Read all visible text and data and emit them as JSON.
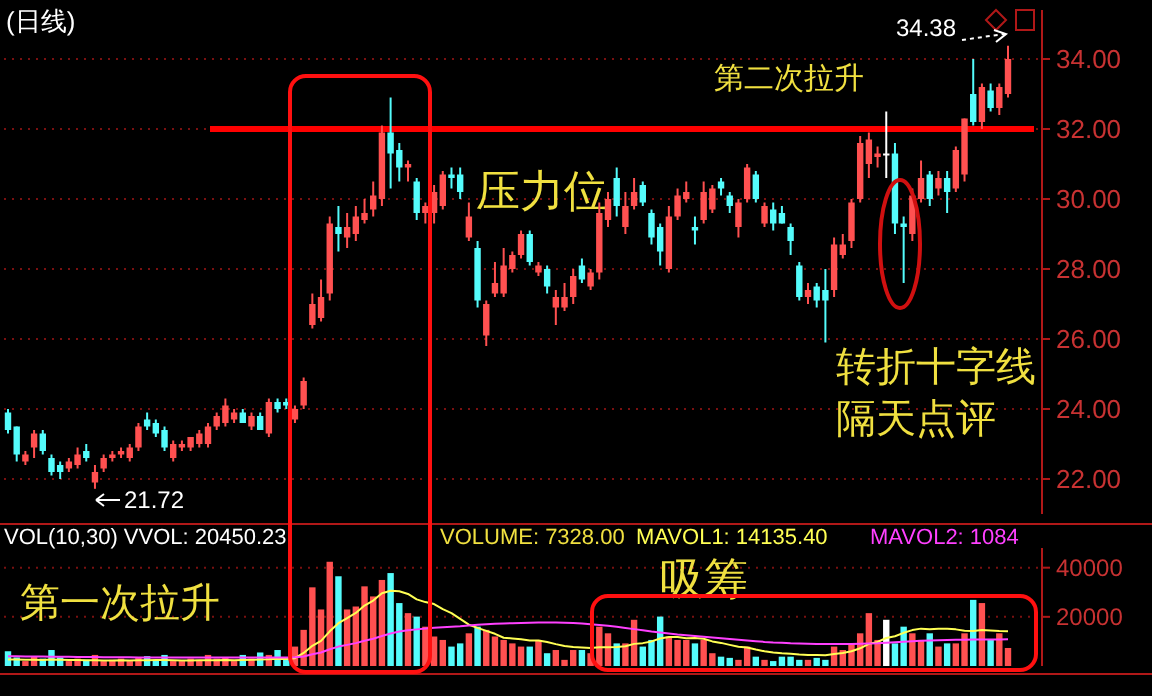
{
  "chart_data": [
    {
      "type": "candlestick",
      "title": "(日线)",
      "categories": [
        null,
        null,
        null,
        null,
        null,
        null,
        null,
        null,
        null,
        null,
        null,
        null,
        null,
        null,
        null,
        null,
        null,
        null,
        null,
        null,
        null,
        null,
        null,
        null,
        null,
        null,
        null,
        null,
        null,
        null,
        null,
        null,
        null,
        null,
        null,
        null,
        null,
        null,
        null,
        null,
        null,
        null,
        null,
        null,
        null,
        null,
        null,
        null,
        null,
        null,
        null,
        null,
        null,
        null,
        null,
        null,
        null,
        null,
        null,
        null,
        null,
        null,
        null,
        null,
        null,
        null,
        null,
        null,
        null,
        null,
        null,
        null,
        null,
        null,
        null,
        null,
        null,
        null,
        null,
        null,
        null,
        null,
        null,
        null,
        null,
        null,
        null,
        null,
        null,
        null,
        null,
        null,
        null,
        null,
        null,
        null,
        null,
        null,
        null,
        null,
        null,
        null,
        null,
        null,
        null,
        null,
        null,
        null,
        null,
        null,
        null,
        null,
        null,
        null,
        null,
        null
      ],
      "ohlc": [
        [
          23.9,
          24.0,
          23.3,
          23.4
        ],
        [
          23.5,
          23.5,
          22.5,
          22.7
        ],
        [
          22.5,
          22.8,
          22.4,
          22.7
        ],
        [
          22.9,
          23.4,
          22.6,
          23.3
        ],
        [
          23.3,
          23.4,
          22.7,
          22.8
        ],
        [
          22.6,
          22.7,
          22.1,
          22.2
        ],
        [
          22.4,
          22.5,
          22.0,
          22.2
        ],
        [
          22.3,
          22.6,
          22.2,
          22.5
        ],
        [
          22.4,
          22.9,
          22.3,
          22.7
        ],
        [
          22.8,
          23.0,
          22.5,
          22.6
        ],
        [
          21.9,
          22.4,
          21.72,
          22.2
        ],
        [
          22.3,
          22.7,
          22.2,
          22.6
        ],
        [
          22.6,
          22.8,
          22.5,
          22.7
        ],
        [
          22.7,
          22.9,
          22.6,
          22.8
        ],
        [
          22.6,
          23.0,
          22.5,
          22.9
        ],
        [
          22.9,
          23.6,
          22.8,
          23.5
        ],
        [
          23.7,
          23.9,
          23.4,
          23.5
        ],
        [
          23.6,
          23.7,
          23.2,
          23.3
        ],
        [
          23.4,
          23.5,
          22.8,
          22.9
        ],
        [
          22.6,
          23.1,
          22.5,
          23.0
        ],
        [
          22.9,
          23.1,
          22.8,
          23.0
        ],
        [
          22.9,
          23.2,
          22.8,
          23.2
        ],
        [
          23.0,
          23.4,
          22.9,
          23.3
        ],
        [
          23.0,
          23.6,
          22.9,
          23.5
        ],
        [
          23.5,
          23.9,
          23.4,
          23.8
        ],
        [
          23.6,
          24.3,
          23.5,
          24.1
        ],
        [
          23.7,
          24.0,
          23.6,
          23.9
        ],
        [
          23.9,
          24.0,
          23.6,
          23.6
        ],
        [
          23.5,
          23.9,
          23.4,
          23.8
        ],
        [
          23.8,
          23.9,
          23.4,
          23.4
        ],
        [
          23.3,
          24.3,
          23.2,
          24.2
        ],
        [
          24.2,
          24.3,
          23.9,
          24.0
        ],
        [
          24.2,
          24.3,
          24.0,
          24.1
        ],
        [
          23.7,
          24.1,
          23.6,
          24.0
        ],
        [
          24.1,
          24.9,
          24.0,
          24.8
        ],
        [
          26.4,
          27.3,
          26.3,
          27.0
        ],
        [
          26.6,
          27.7,
          26.5,
          27.2
        ],
        [
          27.3,
          29.5,
          27.1,
          29.3
        ],
        [
          29.2,
          29.8,
          28.5,
          29.0
        ],
        [
          28.9,
          29.6,
          28.6,
          29.2
        ],
        [
          29.0,
          29.8,
          28.8,
          29.5
        ],
        [
          29.4,
          30.0,
          29.3,
          29.6
        ],
        [
          29.7,
          30.5,
          29.5,
          30.1
        ],
        [
          30.0,
          32.1,
          29.8,
          31.9
        ],
        [
          31.9,
          32.9,
          30.3,
          31.3
        ],
        [
          31.4,
          31.6,
          30.5,
          30.9
        ],
        [
          30.9,
          31.1,
          30.5,
          31.0
        ],
        [
          30.5,
          30.6,
          29.4,
          29.6
        ],
        [
          29.6,
          29.9,
          29.3,
          29.8
        ],
        [
          29.6,
          30.4,
          29.3,
          30.2
        ],
        [
          29.8,
          30.8,
          29.7,
          30.7
        ],
        [
          30.7,
          30.9,
          30.3,
          30.6
        ],
        [
          30.7,
          30.9,
          30.0,
          30.2
        ],
        [
          28.9,
          29.9,
          28.8,
          29.5
        ],
        [
          28.6,
          28.8,
          26.9,
          27.1
        ],
        [
          26.1,
          27.1,
          25.8,
          27.0
        ],
        [
          27.3,
          28.2,
          27.2,
          27.6
        ],
        [
          27.3,
          28.6,
          27.2,
          28.1
        ],
        [
          28.0,
          28.5,
          27.9,
          28.4
        ],
        [
          28.4,
          29.1,
          28.3,
          29.0
        ],
        [
          29.0,
          29.1,
          28.1,
          28.2
        ],
        [
          27.9,
          28.2,
          27.8,
          28.1
        ],
        [
          28.0,
          28.1,
          27.3,
          27.5
        ],
        [
          26.9,
          27.4,
          26.4,
          27.2
        ],
        [
          26.9,
          27.6,
          26.8,
          27.2
        ],
        [
          27.2,
          28.0,
          27.0,
          27.8
        ],
        [
          28.1,
          28.3,
          27.6,
          27.7
        ],
        [
          27.5,
          28.0,
          27.4,
          27.9
        ],
        [
          27.9,
          29.9,
          27.7,
          29.6
        ],
        [
          29.4,
          30.2,
          29.2,
          30.0
        ],
        [
          30.6,
          30.9,
          29.5,
          29.8
        ],
        [
          29.2,
          30.2,
          29.0,
          29.8
        ],
        [
          29.8,
          30.6,
          29.7,
          30.2
        ],
        [
          30.4,
          30.5,
          29.8,
          29.9
        ],
        [
          29.6,
          29.7,
          28.7,
          28.9
        ],
        [
          29.2,
          29.3,
          28.1,
          28.5
        ],
        [
          28.0,
          29.8,
          27.9,
          29.5
        ],
        [
          29.5,
          30.3,
          29.4,
          30.1
        ],
        [
          30.0,
          30.5,
          29.9,
          30.2
        ],
        [
          29.2,
          29.5,
          28.7,
          29.1
        ],
        [
          29.4,
          30.5,
          29.3,
          30.2
        ],
        [
          29.7,
          30.4,
          29.6,
          30.3
        ],
        [
          30.5,
          30.6,
          30.1,
          30.3
        ],
        [
          30.1,
          30.2,
          29.6,
          29.8
        ],
        [
          29.2,
          30.0,
          28.9,
          29.9
        ],
        [
          30.0,
          31.0,
          29.9,
          30.9
        ],
        [
          30.7,
          30.8,
          29.9,
          30.0
        ],
        [
          29.3,
          29.9,
          29.2,
          29.8
        ],
        [
          29.7,
          29.9,
          29.1,
          29.3
        ],
        [
          29.6,
          29.8,
          29.3,
          29.3
        ],
        [
          29.2,
          29.3,
          28.4,
          28.8
        ],
        [
          28.1,
          28.2,
          27.1,
          27.2
        ],
        [
          27.2,
          27.6,
          27.0,
          27.4
        ],
        [
          27.5,
          27.6,
          26.9,
          27.1
        ],
        [
          27.4,
          28.0,
          25.9,
          27.1
        ],
        [
          27.4,
          28.9,
          27.2,
          28.7
        ],
        [
          28.4,
          29.0,
          28.3,
          28.7
        ],
        [
          28.8,
          30.0,
          28.6,
          29.9
        ],
        [
          30.0,
          31.8,
          29.9,
          31.6
        ],
        [
          31.0,
          31.9,
          30.6,
          31.7
        ],
        [
          31.2,
          31.5,
          30.9,
          31.3
        ],
        [
          31.3,
          32.5,
          30.6,
          31.3
        ],
        [
          31.3,
          31.6,
          29.0,
          29.3
        ],
        [
          29.3,
          29.5,
          27.6,
          29.2
        ],
        [
          29.0,
          30.3,
          28.8,
          30.1
        ],
        [
          30.0,
          31.1,
          29.9,
          30.6
        ],
        [
          30.7,
          30.8,
          29.8,
          30.0
        ],
        [
          30.3,
          30.8,
          30.1,
          30.6
        ],
        [
          30.6,
          30.8,
          29.6,
          30.2
        ],
        [
          30.3,
          31.5,
          30.2,
          31.4
        ],
        [
          30.7,
          32.3,
          30.5,
          32.3
        ],
        [
          33.0,
          34.0,
          32.1,
          32.2
        ],
        [
          32.2,
          33.3,
          32.0,
          33.2
        ],
        [
          33.1,
          33.3,
          32.5,
          32.6
        ],
        [
          32.6,
          33.3,
          32.4,
          33.2
        ],
        [
          33.0,
          34.38,
          32.9,
          34.0
        ]
      ],
      "colors": [
        "#54fcfc",
        "#54fcfc",
        "#ff5050",
        "#ff5050",
        "#54fcfc",
        "#54fcfc",
        "#54fcfc",
        "#ff5050",
        "#ff5050",
        "#54fcfc",
        "#ff5050",
        "#ff5050",
        "#ff5050",
        "#ff5050",
        "#ff5050",
        "#ff5050",
        "#54fcfc",
        "#54fcfc",
        "#54fcfc",
        "#ff5050",
        "#ff5050",
        "#ff5050",
        "#ff5050",
        "#ff5050",
        "#ff5050",
        "#ff5050",
        "#ff5050",
        "#54fcfc",
        "#ff5050",
        "#54fcfc",
        "#ff5050",
        "#54fcfc",
        "#54fcfc",
        "#ff5050",
        "#ff5050",
        "#ff5050",
        "#ff5050",
        "#ff5050",
        "#54fcfc",
        "#ff5050",
        "#ff5050",
        "#ff5050",
        "#ff5050",
        "#ff5050",
        "#54fcfc",
        "#54fcfc",
        "#ff5050",
        "#54fcfc",
        "#ff5050",
        "#ff5050",
        "#ff5050",
        "#54fcfc",
        "#54fcfc",
        "#ff5050",
        "#54fcfc",
        "#ff5050",
        "#ff5050",
        "#ff5050",
        "#ff5050",
        "#ff5050",
        "#54fcfc",
        "#ff5050",
        "#54fcfc",
        "#ff5050",
        "#ff5050",
        "#ff5050",
        "#54fcfc",
        "#ff5050",
        "#ff5050",
        "#ff5050",
        "#54fcfc",
        "#ff5050",
        "#ff5050",
        "#54fcfc",
        "#54fcfc",
        "#54fcfc",
        "#ff5050",
        "#ff5050",
        "#ff5050",
        "#54fcfc",
        "#ff5050",
        "#ff5050",
        "#54fcfc",
        "#54fcfc",
        "#ff5050",
        "#ff5050",
        "#54fcfc",
        "#ff5050",
        "#54fcfc",
        "#54fcfc",
        "#54fcfc",
        "#54fcfc",
        "#ff5050",
        "#54fcfc",
        "#54fcfc",
        "#ff5050",
        "#ff5050",
        "#ff5050",
        "#ff5050",
        "#ff5050",
        "#ff5050",
        "#ffffff",
        "#54fcfc",
        "#54fcfc",
        "#ff5050",
        "#ff5050",
        "#54fcfc",
        "#ff5050",
        "#54fcfc",
        "#ff5050",
        "#ff5050",
        "#54fcfc",
        "#ff5050",
        "#54fcfc",
        "#ff5050",
        "#ff5050"
      ],
      "ylim": [
        21.0,
        35.4
      ],
      "yticks": [
        {
          "value": 22,
          "label": "22.00"
        },
        {
          "value": 24,
          "label": "24.00"
        },
        {
          "value": 26,
          "label": "26.00"
        },
        {
          "value": 28,
          "label": "28.00"
        },
        {
          "value": 30,
          "label": "30.00"
        },
        {
          "value": 32,
          "label": "32.00"
        },
        {
          "value": 34,
          "label": "34.00"
        }
      ],
      "grid": "y",
      "tick_labels": "y",
      "ref_lines": [
        {
          "axis": "y",
          "value": 32,
          "label": "压力位",
          "color": "#ff0000"
        }
      ],
      "annotations": [
        "第二次拉升",
        "34.38",
        "21.72",
        "转折十字线",
        "隔天点评"
      ]
    },
    {
      "type": "bar",
      "title": "VOL(10,30) VVOL: 20450.23",
      "categories": [
        null,
        null,
        null,
        null,
        null,
        null,
        null,
        null,
        null,
        null,
        null,
        null,
        null,
        null,
        null,
        null,
        null,
        null,
        null,
        null,
        null,
        null,
        null,
        null,
        null,
        null,
        null,
        null,
        null,
        null,
        null,
        null,
        null,
        null,
        null,
        null,
        null,
        null,
        null,
        null,
        null,
        null,
        null,
        null,
        null,
        null,
        null,
        null,
        null,
        null,
        null,
        null,
        null,
        null,
        null,
        null,
        null,
        null,
        null,
        null,
        null,
        null,
        null,
        null,
        null,
        null,
        null,
        null,
        null,
        null,
        null,
        null,
        null,
        null,
        null,
        null,
        null,
        null,
        null,
        null,
        null,
        null,
        null,
        null,
        null,
        null,
        null,
        null,
        null,
        null,
        null,
        null,
        null,
        null,
        null,
        null,
        null,
        null,
        null,
        null,
        null,
        null,
        null,
        null,
        null,
        null,
        null,
        null,
        null,
        null,
        null,
        null,
        null,
        null,
        null,
        null
      ],
      "series": [
        {
          "type": "bar",
          "values": [
            6000,
            3500,
            2000,
            4000,
            3000,
            6500,
            3500,
            2000,
            3000,
            2500,
            4500,
            2000,
            2500,
            3000,
            2000,
            3500,
            4000,
            2500,
            4500,
            2000,
            2000,
            3000,
            2500,
            4500,
            3000,
            3500,
            2000,
            4500,
            3000,
            5500,
            4500,
            6500,
            3000,
            7900,
            14700,
            32000,
            23000,
            42400,
            36500,
            23000,
            24200,
            32400,
            28300,
            35000,
            37800,
            25600,
            21500,
            20100,
            16000,
            12000,
            10600,
            7900,
            9200,
            13300,
            16000,
            14700,
            12000,
            10600,
            9200,
            7900,
            7900,
            10600,
            5200,
            6500,
            2500,
            6500,
            6500,
            5200,
            16000,
            13300,
            9200,
            9200,
            18800,
            7900,
            10600,
            20100,
            12000,
            10600,
            10600,
            9200,
            10600,
            5200,
            3800,
            3300,
            2500,
            7900,
            3800,
            2500,
            2000,
            3800,
            3800,
            2500,
            2500,
            3300,
            2500,
            7900,
            6500,
            9200,
            13300,
            21500,
            10600,
            18800,
            9200,
            16000,
            13300,
            10600,
            13300,
            7900,
            9200,
            9200,
            13300,
            26900,
            25600,
            10600,
            13300,
            7328
          ],
          "colors": [
            "#54fcfc",
            "#54fcfc",
            "#ff5050",
            "#ff5050",
            "#54fcfc",
            "#54fcfc",
            "#54fcfc",
            "#ff5050",
            "#ff5050",
            "#54fcfc",
            "#ff5050",
            "#ff5050",
            "#ff5050",
            "#ff5050",
            "#ff5050",
            "#ff5050",
            "#54fcfc",
            "#54fcfc",
            "#54fcfc",
            "#ff5050",
            "#ff5050",
            "#ff5050",
            "#ff5050",
            "#ff5050",
            "#ff5050",
            "#ff5050",
            "#ff5050",
            "#54fcfc",
            "#ff5050",
            "#54fcfc",
            "#ff5050",
            "#54fcfc",
            "#54fcfc",
            "#ff5050",
            "#ff5050",
            "#ff5050",
            "#ff5050",
            "#ff5050",
            "#54fcfc",
            "#ff5050",
            "#ff5050",
            "#ff5050",
            "#ff5050",
            "#ff5050",
            "#54fcfc",
            "#54fcfc",
            "#ff5050",
            "#54fcfc",
            "#ff5050",
            "#ff5050",
            "#ff5050",
            "#54fcfc",
            "#54fcfc",
            "#ff5050",
            "#54fcfc",
            "#ff5050",
            "#ff5050",
            "#ff5050",
            "#ff5050",
            "#ff5050",
            "#54fcfc",
            "#ff5050",
            "#54fcfc",
            "#ff5050",
            "#ff5050",
            "#ff5050",
            "#54fcfc",
            "#ff5050",
            "#ff5050",
            "#ff5050",
            "#54fcfc",
            "#ff5050",
            "#ff5050",
            "#54fcfc",
            "#54fcfc",
            "#54fcfc",
            "#ff5050",
            "#ff5050",
            "#ff5050",
            "#54fcfc",
            "#ff5050",
            "#ff5050",
            "#54fcfc",
            "#54fcfc",
            "#ff5050",
            "#ff5050",
            "#54fcfc",
            "#ff5050",
            "#54fcfc",
            "#54fcfc",
            "#54fcfc",
            "#54fcfc",
            "#ff5050",
            "#54fcfc",
            "#54fcfc",
            "#ff5050",
            "#ff5050",
            "#ff5050",
            "#ff5050",
            "#ff5050",
            "#ff5050",
            "#ffffff",
            "#54fcfc",
            "#54fcfc",
            "#ff5050",
            "#ff5050",
            "#54fcfc",
            "#ff5050",
            "#54fcfc",
            "#ff5050",
            "#ff5050",
            "#54fcfc",
            "#ff5050",
            "#54fcfc",
            "#ff5050",
            "#ff5050"
          ]
        },
        {
          "type": "line",
          "name": "MAVOL1: 14135.40",
          "color": "#ffff54",
          "values": [
            2600,
            2600,
            2500,
            2500,
            2400,
            2600,
            2500,
            2400,
            2400,
            2300,
            2300,
            2200,
            2200,
            2300,
            2200,
            2300,
            2300,
            2400,
            2400,
            2300,
            2200,
            2200,
            2300,
            2300,
            2300,
            2400,
            2300,
            2400,
            2500,
            2600,
            2700,
            2900,
            2800,
            3200,
            5300,
            8200,
            10200,
            14100,
            17400,
            19500,
            21600,
            24600,
            26600,
            29600,
            30600,
            30400,
            29300,
            27100,
            26000,
            25200,
            23100,
            21500,
            19200,
            16800,
            15500,
            14300,
            13100,
            11500,
            11200,
            10900,
            10400,
            10400,
            9800,
            8900,
            8100,
            7700,
            7500,
            7300,
            7600,
            7600,
            7700,
            8000,
            9000,
            9300,
            10000,
            11200,
            11800,
            11800,
            11300,
            11400,
            11100,
            10000,
            9400,
            8600,
            7800,
            7500,
            6700,
            6000,
            5500,
            5200,
            5000,
            4700,
            4500,
            4500,
            4400,
            4900,
            5300,
            6000,
            7200,
            9000,
            9800,
            11400,
            12100,
            13500,
            14600,
            15200,
            14900,
            15200,
            15200,
            14900,
            14300,
            14200,
            14600,
            14400,
            14200,
            14135.4
          ]
        },
        {
          "type": "line",
          "name": "MAVOL2: 1084",
          "color": "#ff40ff",
          "values": [
            4000,
            4000,
            3900,
            3900,
            3900,
            3800,
            3800,
            3800,
            3700,
            3700,
            3700,
            3600,
            3600,
            3600,
            3600,
            3500,
            3500,
            3500,
            3500,
            3500,
            3500,
            3500,
            3500,
            3500,
            3500,
            3500,
            3500,
            3500,
            3500,
            3500,
            3500,
            3500,
            3500,
            3600,
            3900,
            4800,
            5500,
            6800,
            7900,
            8600,
            9300,
            10300,
            11100,
            12200,
            13200,
            14000,
            14500,
            14900,
            15300,
            15600,
            15800,
            16000,
            16200,
            16500,
            16800,
            17000,
            17200,
            17300,
            17400,
            17500,
            17600,
            17700,
            17700,
            17700,
            17600,
            17500,
            17300,
            17000,
            16700,
            16400,
            16000,
            15500,
            15000,
            14500,
            14000,
            13600,
            13200,
            12800,
            12500,
            12200,
            11900,
            11600,
            11300,
            11000,
            10700,
            10400,
            10100,
            9800,
            9600,
            9500,
            9300,
            9200,
            9100,
            9000,
            9000,
            9000,
            9000,
            9000,
            9100,
            9200,
            9300,
            9500,
            9700,
            9900,
            10100,
            10300,
            10400,
            10500,
            10600,
            10700,
            10700,
            10800,
            10800,
            10800,
            10800,
            10840
          ]
        }
      ],
      "ylim": [
        0,
        48000
      ],
      "yticks": [
        20000,
        40000
      ],
      "grid": "y",
      "tick_labels": "y",
      "marker": "none",
      "line_style": "solid",
      "annotations": [
        "VOLUME: 7328.00",
        "第一次拉升",
        "吸筹"
      ]
    }
  ]
}
